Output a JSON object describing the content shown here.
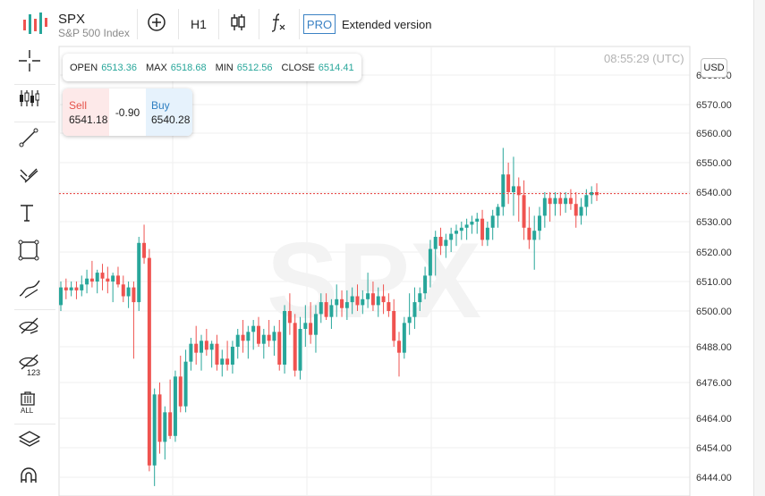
{
  "header": {
    "symbol": "SPX",
    "name": "S&P 500 Index",
    "timeframe": "H1",
    "pro_badge": "PRO",
    "extended_label": "Extended version",
    "icons": [
      "logo-bars-icon",
      "plus-circle-icon",
      "candlestick-icon",
      "function-icon"
    ]
  },
  "ohlc": {
    "open_label": "OPEN",
    "open": "6513.36",
    "max_label": "MAX",
    "max": "6518.68",
    "min_label": "MIN",
    "min": "6512.56",
    "close_label": "CLOSE",
    "close": "6514.41"
  },
  "trade": {
    "sell_label": "Sell",
    "sell_price": "6541.18",
    "spread": "-0.90",
    "buy_label": "Buy",
    "buy_price": "6540.28"
  },
  "clock": "08:55:29 (UTC)",
  "currency": "USD",
  "watermark": "SPX",
  "toolbar": [
    "crosshair-icon",
    "indicators-icon",
    "trend-line-icon",
    "fib-tools-icon",
    "text-icon",
    "shapes-icon",
    "brush-icon",
    "hide-drawings-icon",
    "hide-123-icon",
    "delete-all-icon",
    "layers-icon",
    "magnet-icon"
  ],
  "colors": {
    "up": "#27a69a",
    "down": "#ef5350",
    "price_line": "#e53935",
    "watermark": "#f3f3f3"
  },
  "chart_data": {
    "type": "candlestick",
    "symbol": "SPX",
    "y_ticks": [
      "6444.00",
      "6454.00",
      "6464.00",
      "6476.00",
      "6488.00",
      "6500.00",
      "6510.00",
      "6520.00",
      "6530.00",
      "6540.00",
      "6550.00",
      "6560.00",
      "6570.00",
      "6580.00"
    ],
    "price_line": 6539.5,
    "grid": true,
    "candles": [
      [
        6502,
        6510,
        6500,
        6508
      ],
      [
        6508,
        6511,
        6504,
        6507
      ],
      [
        6507,
        6510,
        6505,
        6508
      ],
      [
        6508,
        6510,
        6504,
        6507
      ],
      [
        6507,
        6512,
        6505,
        6509
      ],
      [
        6509,
        6514,
        6506,
        6511
      ],
      [
        6511,
        6517,
        6508,
        6510
      ],
      [
        6510,
        6514,
        6506,
        6513
      ],
      [
        6513,
        6516,
        6507,
        6511
      ],
      [
        6511,
        6515,
        6506,
        6510
      ],
      [
        6510,
        6513,
        6503,
        6512
      ],
      [
        6512,
        6515,
        6508,
        6509
      ],
      [
        6509,
        6512,
        6503,
        6505
      ],
      [
        6505,
        6510,
        6501,
        6508
      ],
      [
        6508,
        6510,
        6484,
        6503
      ],
      [
        6503,
        6525,
        6500,
        6523
      ],
      [
        6523,
        6529,
        6516,
        6518
      ],
      [
        6518,
        6521,
        6446,
        6448
      ],
      [
        6448,
        6474,
        6441,
        6472
      ],
      [
        6472,
        6476,
        6452,
        6456
      ],
      [
        6456,
        6468,
        6450,
        6466
      ],
      [
        6466,
        6477,
        6457,
        6458
      ],
      [
        6458,
        6480,
        6456,
        6478
      ],
      [
        6478,
        6485,
        6466,
        6468
      ],
      [
        6468,
        6487,
        6466,
        6483
      ],
      [
        6483,
        6491,
        6480,
        6489
      ],
      [
        6489,
        6495,
        6482,
        6486
      ],
      [
        6486,
        6492,
        6480,
        6490
      ],
      [
        6490,
        6494,
        6485,
        6487
      ],
      [
        6487,
        6490,
        6481,
        6489
      ],
      [
        6489,
        6492,
        6480,
        6482
      ],
      [
        6482,
        6487,
        6478,
        6484
      ],
      [
        6484,
        6490,
        6480,
        6482
      ],
      [
        6482,
        6490,
        6479,
        6488
      ],
      [
        6488,
        6494,
        6484,
        6492
      ],
      [
        6492,
        6497,
        6486,
        6490
      ],
      [
        6490,
        6495,
        6484,
        6493
      ],
      [
        6493,
        6497,
        6487,
        6495
      ],
      [
        6495,
        6498,
        6488,
        6489
      ],
      [
        6489,
        6494,
        6484,
        6492
      ],
      [
        6492,
        6497,
        6488,
        6490
      ],
      [
        6490,
        6495,
        6485,
        6493
      ],
      [
        6493,
        6497,
        6480,
        6482
      ],
      [
        6482,
        6502,
        6479,
        6500
      ],
      [
        6500,
        6506,
        6492,
        6496
      ],
      [
        6496,
        6499,
        6478,
        6480
      ],
      [
        6480,
        6498,
        6477,
        6494
      ],
      [
        6494,
        6502,
        6488,
        6496
      ],
      [
        6496,
        6503,
        6489,
        6492
      ],
      [
        6492,
        6502,
        6486,
        6499
      ],
      [
        6499,
        6506,
        6496,
        6503
      ],
      [
        6503,
        6506,
        6497,
        6498
      ],
      [
        6498,
        6504,
        6494,
        6502
      ],
      [
        6502,
        6509,
        6498,
        6504
      ],
      [
        6504,
        6507,
        6498,
        6501
      ],
      [
        6501,
        6507,
        6497,
        6503
      ],
      [
        6503,
        6508,
        6499,
        6505
      ],
      [
        6505,
        6509,
        6500,
        6502
      ],
      [
        6502,
        6507,
        6499,
        6504
      ],
      [
        6504,
        6513,
        6501,
        6506
      ],
      [
        6506,
        6510,
        6500,
        6502
      ],
      [
        6502,
        6508,
        6498,
        6505
      ],
      [
        6505,
        6509,
        6499,
        6503
      ],
      [
        6503,
        6506,
        6498,
        6500
      ],
      [
        6500,
        6504,
        6488,
        6490
      ],
      [
        6490,
        6493,
        6478,
        6486
      ],
      [
        6486,
        6498,
        6484,
        6496
      ],
      [
        6496,
        6506,
        6492,
        6498
      ],
      [
        6498,
        6508,
        6494,
        6503
      ],
      [
        6503,
        6508,
        6500,
        6506
      ],
      [
        6506,
        6515,
        6504,
        6512
      ],
      [
        6512,
        6524,
        6508,
        6521
      ],
      [
        6521,
        6527,
        6512,
        6525
      ],
      [
        6525,
        6528,
        6519,
        6522
      ],
      [
        6522,
        6526,
        6518,
        6524
      ],
      [
        6524,
        6528,
        6520,
        6526
      ],
      [
        6526,
        6529,
        6522,
        6527
      ],
      [
        6527,
        6530,
        6524,
        6528
      ],
      [
        6528,
        6531,
        6524,
        6529
      ],
      [
        6529,
        6532,
        6526,
        6530
      ],
      [
        6530,
        6533,
        6526,
        6531
      ],
      [
        6531,
        6534,
        6522,
        6524
      ],
      [
        6524,
        6530,
        6522,
        6528
      ],
      [
        6528,
        6534,
        6524,
        6532
      ],
      [
        6532,
        6536,
        6528,
        6535
      ],
      [
        6535,
        6555,
        6532,
        6546
      ],
      [
        6546,
        6550,
        6536,
        6540
      ],
      [
        6540,
        6552,
        6532,
        6542
      ],
      [
        6542,
        6545,
        6530,
        6539
      ],
      [
        6539,
        6544,
        6524,
        6528
      ],
      [
        6528,
        6535,
        6521,
        6524
      ],
      [
        6524,
        6532,
        6514,
        6527
      ],
      [
        6527,
        6535,
        6524,
        6532
      ],
      [
        6532,
        6540,
        6528,
        6538
      ],
      [
        6538,
        6540,
        6530,
        6536
      ],
      [
        6536,
        6540,
        6532,
        6538
      ],
      [
        6538,
        6540,
        6532,
        6536
      ],
      [
        6536,
        6540,
        6533,
        6538
      ],
      [
        6538,
        6541,
        6534,
        6536
      ],
      [
        6536,
        6540,
        6528,
        6532
      ],
      [
        6532,
        6538,
        6529,
        6535
      ],
      [
        6535,
        6541,
        6532,
        6539
      ],
      [
        6539,
        6542,
        6536,
        6540
      ],
      [
        6540,
        6543,
        6537,
        6539
      ]
    ]
  }
}
